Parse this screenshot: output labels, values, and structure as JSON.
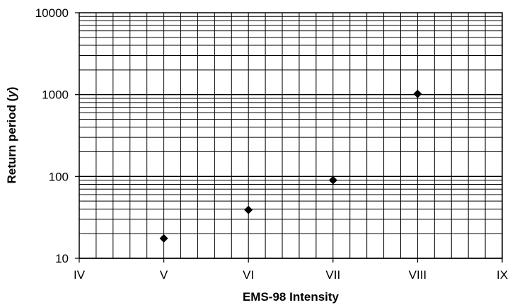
{
  "chart_data": {
    "type": "scatter",
    "xlabel": "EMS-98 Intensity",
    "ylabel_main": "Return period (",
    "ylabel_unit": "y",
    "ylabel_close": ")",
    "x_categories": [
      "IV",
      "V",
      "VI",
      "VII",
      "VIII",
      "IX"
    ],
    "xlim": [
      4,
      9
    ],
    "y_scale": "log",
    "ylim": [
      10,
      10000
    ],
    "y_ticks": [
      10,
      100,
      1000,
      10000
    ],
    "y_tick_labels": [
      "10",
      "100",
      "1000",
      "10000"
    ],
    "grid": true,
    "x_minor_divisions": 5,
    "marker": "diamond",
    "marker_color": "#000000",
    "points": [
      {
        "x": 5,
        "y": 17.5
      },
      {
        "x": 6,
        "y": 39
      },
      {
        "x": 7,
        "y": 90
      },
      {
        "x": 8,
        "y": 1020
      }
    ]
  }
}
